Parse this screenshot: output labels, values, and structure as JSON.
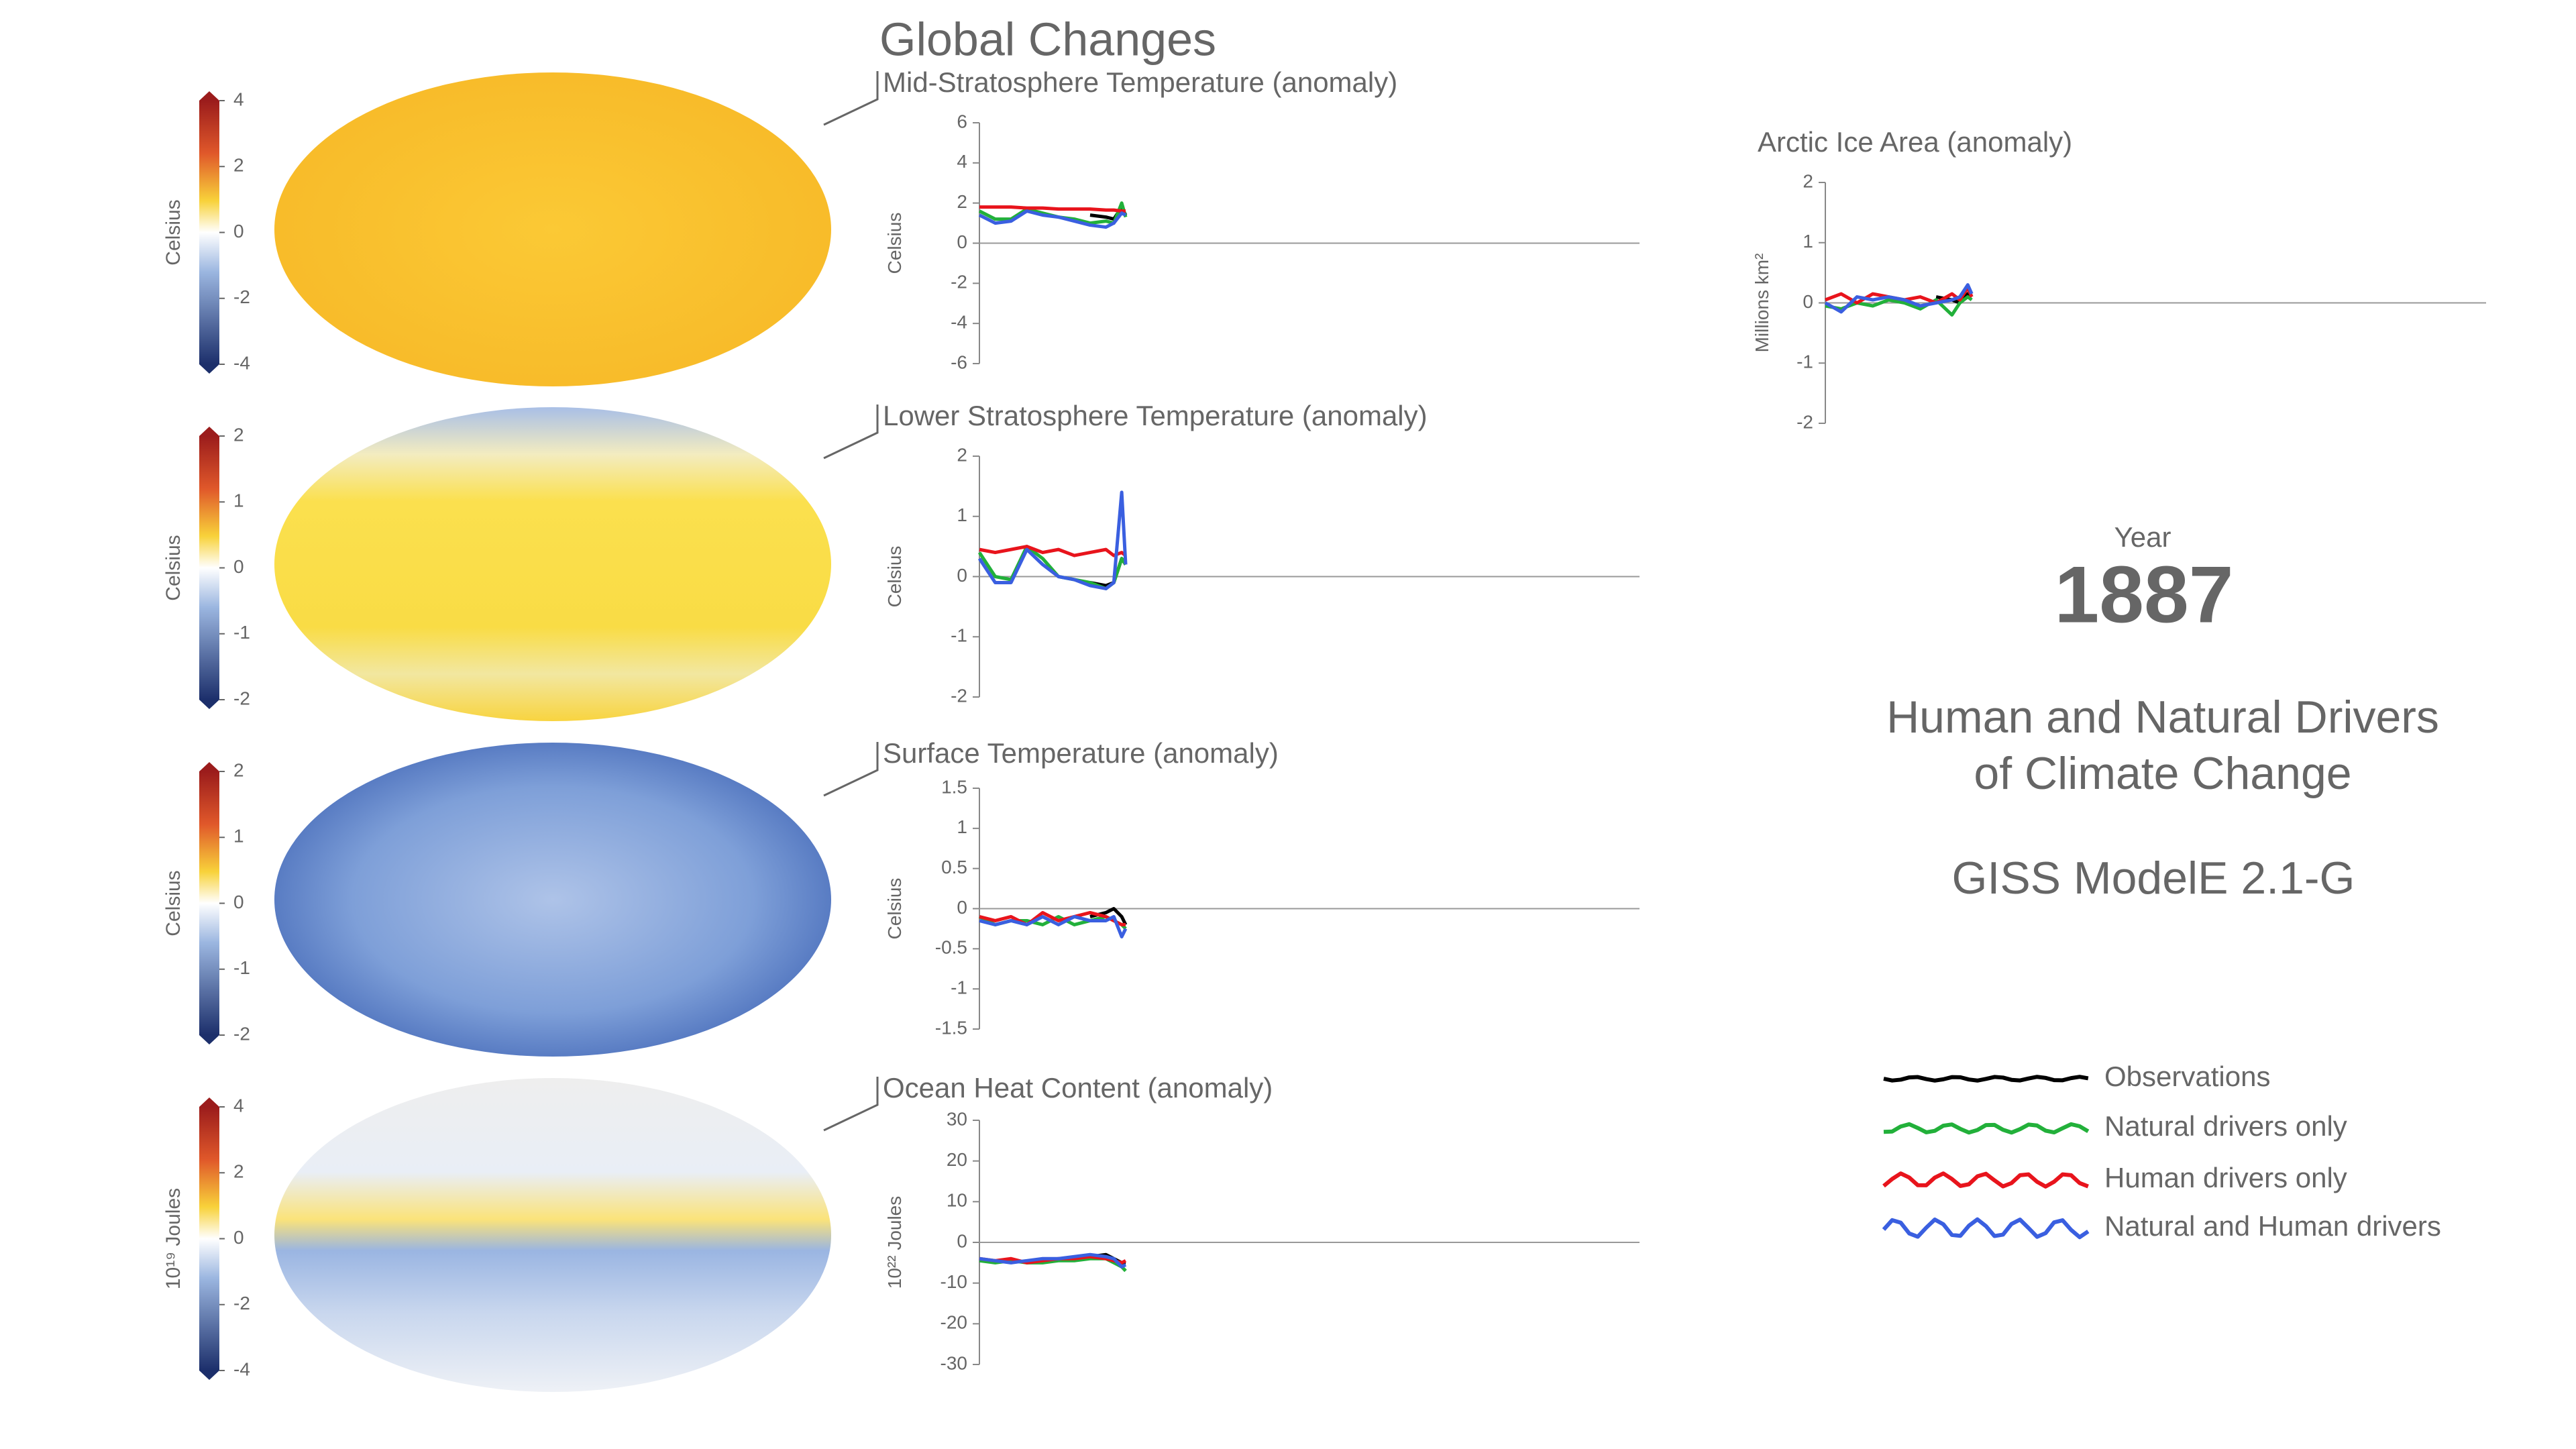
{
  "title": "Global Changes",
  "year_label": "Year",
  "year": "1887",
  "headline": [
    "Human and Natural Drivers",
    "of Climate Change"
  ],
  "model": "GISS ModelE 2.1-G",
  "colorbars": [
    {
      "label": "Celsius",
      "ticks": [
        4,
        2,
        0,
        -2,
        -4
      ]
    },
    {
      "label": "Celsius",
      "ticks": [
        2,
        1,
        0,
        -1,
        -2
      ]
    },
    {
      "label": "Celsius",
      "ticks": [
        2,
        1,
        0,
        -1,
        -2
      ]
    },
    {
      "label": "10¹⁹ Joules",
      "ticks": [
        4,
        2,
        0,
        -2,
        -4
      ]
    }
  ],
  "chart_data": [
    {
      "type": "line",
      "title": "Mid-Stratosphere Temperature (anomaly)",
      "ylabel": "Celsius",
      "x": [
        1850,
        1854,
        1858,
        1862,
        1866,
        1870,
        1874,
        1878,
        1882,
        1884,
        1886,
        1887
      ],
      "xlim": [
        1850,
        2017
      ],
      "ylim": [
        -6,
        6
      ],
      "yticks": [
        -6,
        -4,
        -2,
        0,
        2,
        4,
        6
      ],
      "series": [
        {
          "name": "Observations",
          "color": "#000000",
          "values": [
            null,
            null,
            null,
            null,
            null,
            null,
            null,
            1.4,
            1.3,
            1.2,
            1.8,
            1.4
          ]
        },
        {
          "name": "Natural drivers only",
          "color": "#22b03a",
          "values": [
            1.6,
            1.2,
            1.2,
            1.7,
            1.5,
            1.3,
            1.2,
            1.0,
            1.1,
            1.0,
            2.0,
            1.3
          ]
        },
        {
          "name": "Human drivers only",
          "color": "#e8141c",
          "values": [
            1.8,
            1.8,
            1.8,
            1.75,
            1.75,
            1.7,
            1.7,
            1.7,
            1.65,
            1.65,
            1.6,
            1.6
          ]
        },
        {
          "name": "Natural and Human drivers",
          "color": "#3a5fe0",
          "values": [
            1.4,
            1.0,
            1.1,
            1.6,
            1.4,
            1.3,
            1.1,
            0.9,
            0.8,
            1.0,
            1.5,
            1.4
          ]
        }
      ]
    },
    {
      "type": "line",
      "title": "Lower Stratosphere Temperature (anomaly)",
      "ylabel": "Celsius",
      "x": [
        1850,
        1854,
        1858,
        1862,
        1866,
        1870,
        1874,
        1878,
        1882,
        1884,
        1886,
        1887
      ],
      "xlim": [
        1850,
        2017
      ],
      "ylim": [
        -2,
        2
      ],
      "yticks": [
        -2,
        -1,
        0,
        1,
        2
      ],
      "series": [
        {
          "color": "#000000",
          "values": [
            null,
            null,
            null,
            null,
            null,
            null,
            null,
            -0.1,
            -0.15,
            -0.1,
            0.3,
            0.2
          ]
        },
        {
          "color": "#22b03a",
          "values": [
            0.4,
            0.0,
            -0.05,
            0.5,
            0.3,
            0.0,
            -0.05,
            -0.1,
            -0.2,
            -0.1,
            0.3,
            0.2
          ]
        },
        {
          "color": "#e8141c",
          "values": [
            0.45,
            0.4,
            0.45,
            0.5,
            0.4,
            0.45,
            0.35,
            0.4,
            0.45,
            0.35,
            0.4,
            0.35
          ]
        },
        {
          "color": "#3a5fe0",
          "values": [
            0.3,
            -0.1,
            -0.1,
            0.45,
            0.2,
            0.0,
            -0.05,
            -0.15,
            -0.2,
            -0.1,
            1.4,
            0.2
          ]
        }
      ]
    },
    {
      "type": "line",
      "title": "Surface Temperature (anomaly)",
      "ylabel": "Celsius",
      "x": [
        1850,
        1854,
        1858,
        1862,
        1866,
        1870,
        1874,
        1878,
        1882,
        1884,
        1886,
        1887
      ],
      "xlim": [
        1850,
        2017
      ],
      "ylim": [
        -1.5,
        1.5
      ],
      "yticks": [
        -1.5,
        -1,
        -0.5,
        0,
        0.5,
        1,
        1.5
      ],
      "series": [
        {
          "color": "#000000",
          "values": [
            null,
            null,
            null,
            null,
            null,
            null,
            null,
            -0.1,
            -0.05,
            0.0,
            -0.1,
            -0.2
          ]
        },
        {
          "color": "#22b03a",
          "values": [
            -0.1,
            -0.2,
            -0.15,
            -0.15,
            -0.2,
            -0.1,
            -0.2,
            -0.15,
            -0.1,
            -0.15,
            -0.2,
            -0.25
          ]
        },
        {
          "color": "#e8141c",
          "values": [
            -0.1,
            -0.15,
            -0.1,
            -0.2,
            -0.05,
            -0.15,
            -0.1,
            -0.05,
            -0.1,
            -0.15,
            -0.2,
            -0.2
          ]
        },
        {
          "color": "#3a5fe0",
          "values": [
            -0.15,
            -0.2,
            -0.15,
            -0.2,
            -0.1,
            -0.2,
            -0.1,
            -0.15,
            -0.15,
            -0.1,
            -0.35,
            -0.25
          ]
        }
      ]
    },
    {
      "type": "line",
      "title": "Ocean Heat Content (anomaly)",
      "ylabel": "10²² Joules",
      "x": [
        1850,
        1854,
        1858,
        1862,
        1866,
        1870,
        1874,
        1878,
        1882,
        1884,
        1886,
        1887
      ],
      "xlim": [
        1850,
        2017
      ],
      "ylim": [
        -30,
        30
      ],
      "yticks": [
        -30,
        -20,
        -10,
        0,
        10,
        20,
        30
      ],
      "series": [
        {
          "color": "#000000",
          "values": [
            null,
            null,
            null,
            null,
            null,
            null,
            null,
            -3.5,
            -3,
            -4,
            -5,
            -5
          ]
        },
        {
          "color": "#22b03a",
          "values": [
            -4.5,
            -5,
            -4.5,
            -5,
            -5,
            -4.5,
            -4.5,
            -4,
            -4,
            -5,
            -6,
            -7
          ]
        },
        {
          "color": "#e8141c",
          "values": [
            -4,
            -4.5,
            -4,
            -5,
            -4.5,
            -4,
            -4,
            -3.5,
            -4,
            -4.5,
            -5,
            -4.5
          ]
        },
        {
          "color": "#3a5fe0",
          "values": [
            -4,
            -4.5,
            -5,
            -4.5,
            -4,
            -4,
            -3.5,
            -3,
            -3.5,
            -4,
            -6,
            -5.5
          ]
        }
      ]
    },
    {
      "type": "line",
      "title": "Arctic Ice Area (anomaly)",
      "ylabel": "Millions km²",
      "x": [
        1850,
        1854,
        1858,
        1862,
        1866,
        1870,
        1874,
        1878,
        1882,
        1884,
        1886,
        1887
      ],
      "xlim": [
        1850,
        2017
      ],
      "ylim": [
        -2,
        2
      ],
      "yticks": [
        -2,
        -1,
        0,
        1,
        2
      ],
      "series": [
        {
          "color": "#000000",
          "values": [
            null,
            null,
            null,
            null,
            null,
            null,
            null,
            0.1,
            0.05,
            0.0,
            0.15,
            0.1
          ]
        },
        {
          "color": "#22b03a",
          "values": [
            -0.05,
            -0.1,
            0.0,
            -0.05,
            0.05,
            0.0,
            -0.1,
            0.05,
            -0.2,
            0.0,
            0.1,
            0.05
          ]
        },
        {
          "color": "#e8141c",
          "values": [
            0.05,
            0.15,
            0.0,
            0.15,
            0.1,
            0.05,
            0.1,
            0.0,
            0.15,
            0.05,
            0.25,
            0.1
          ]
        },
        {
          "color": "#3a5fe0",
          "values": [
            0.0,
            -0.15,
            0.1,
            0.05,
            0.1,
            0.05,
            -0.05,
            0.0,
            0.05,
            0.1,
            0.3,
            0.15
          ]
        }
      ]
    }
  ]
}
